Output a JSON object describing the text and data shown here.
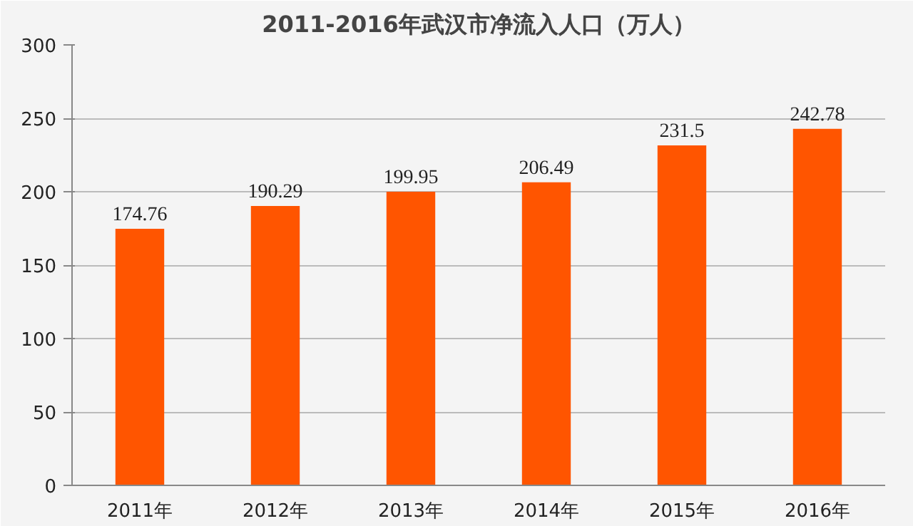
{
  "chart_data": {
    "type": "bar",
    "title": "2011-2016年武汉市净流入人口（万人）",
    "categories": [
      "2011年",
      "2012年",
      "2013年",
      "2014年",
      "2015年",
      "2016年"
    ],
    "values": [
      174.76,
      190.29,
      199.95,
      206.49,
      231.5,
      242.78
    ],
    "color": "#ff5500",
    "ylim": [
      0,
      300
    ],
    "yticks": [
      0,
      50,
      100,
      150,
      200,
      250,
      300
    ],
    "grid": "y",
    "data_labels": true
  }
}
